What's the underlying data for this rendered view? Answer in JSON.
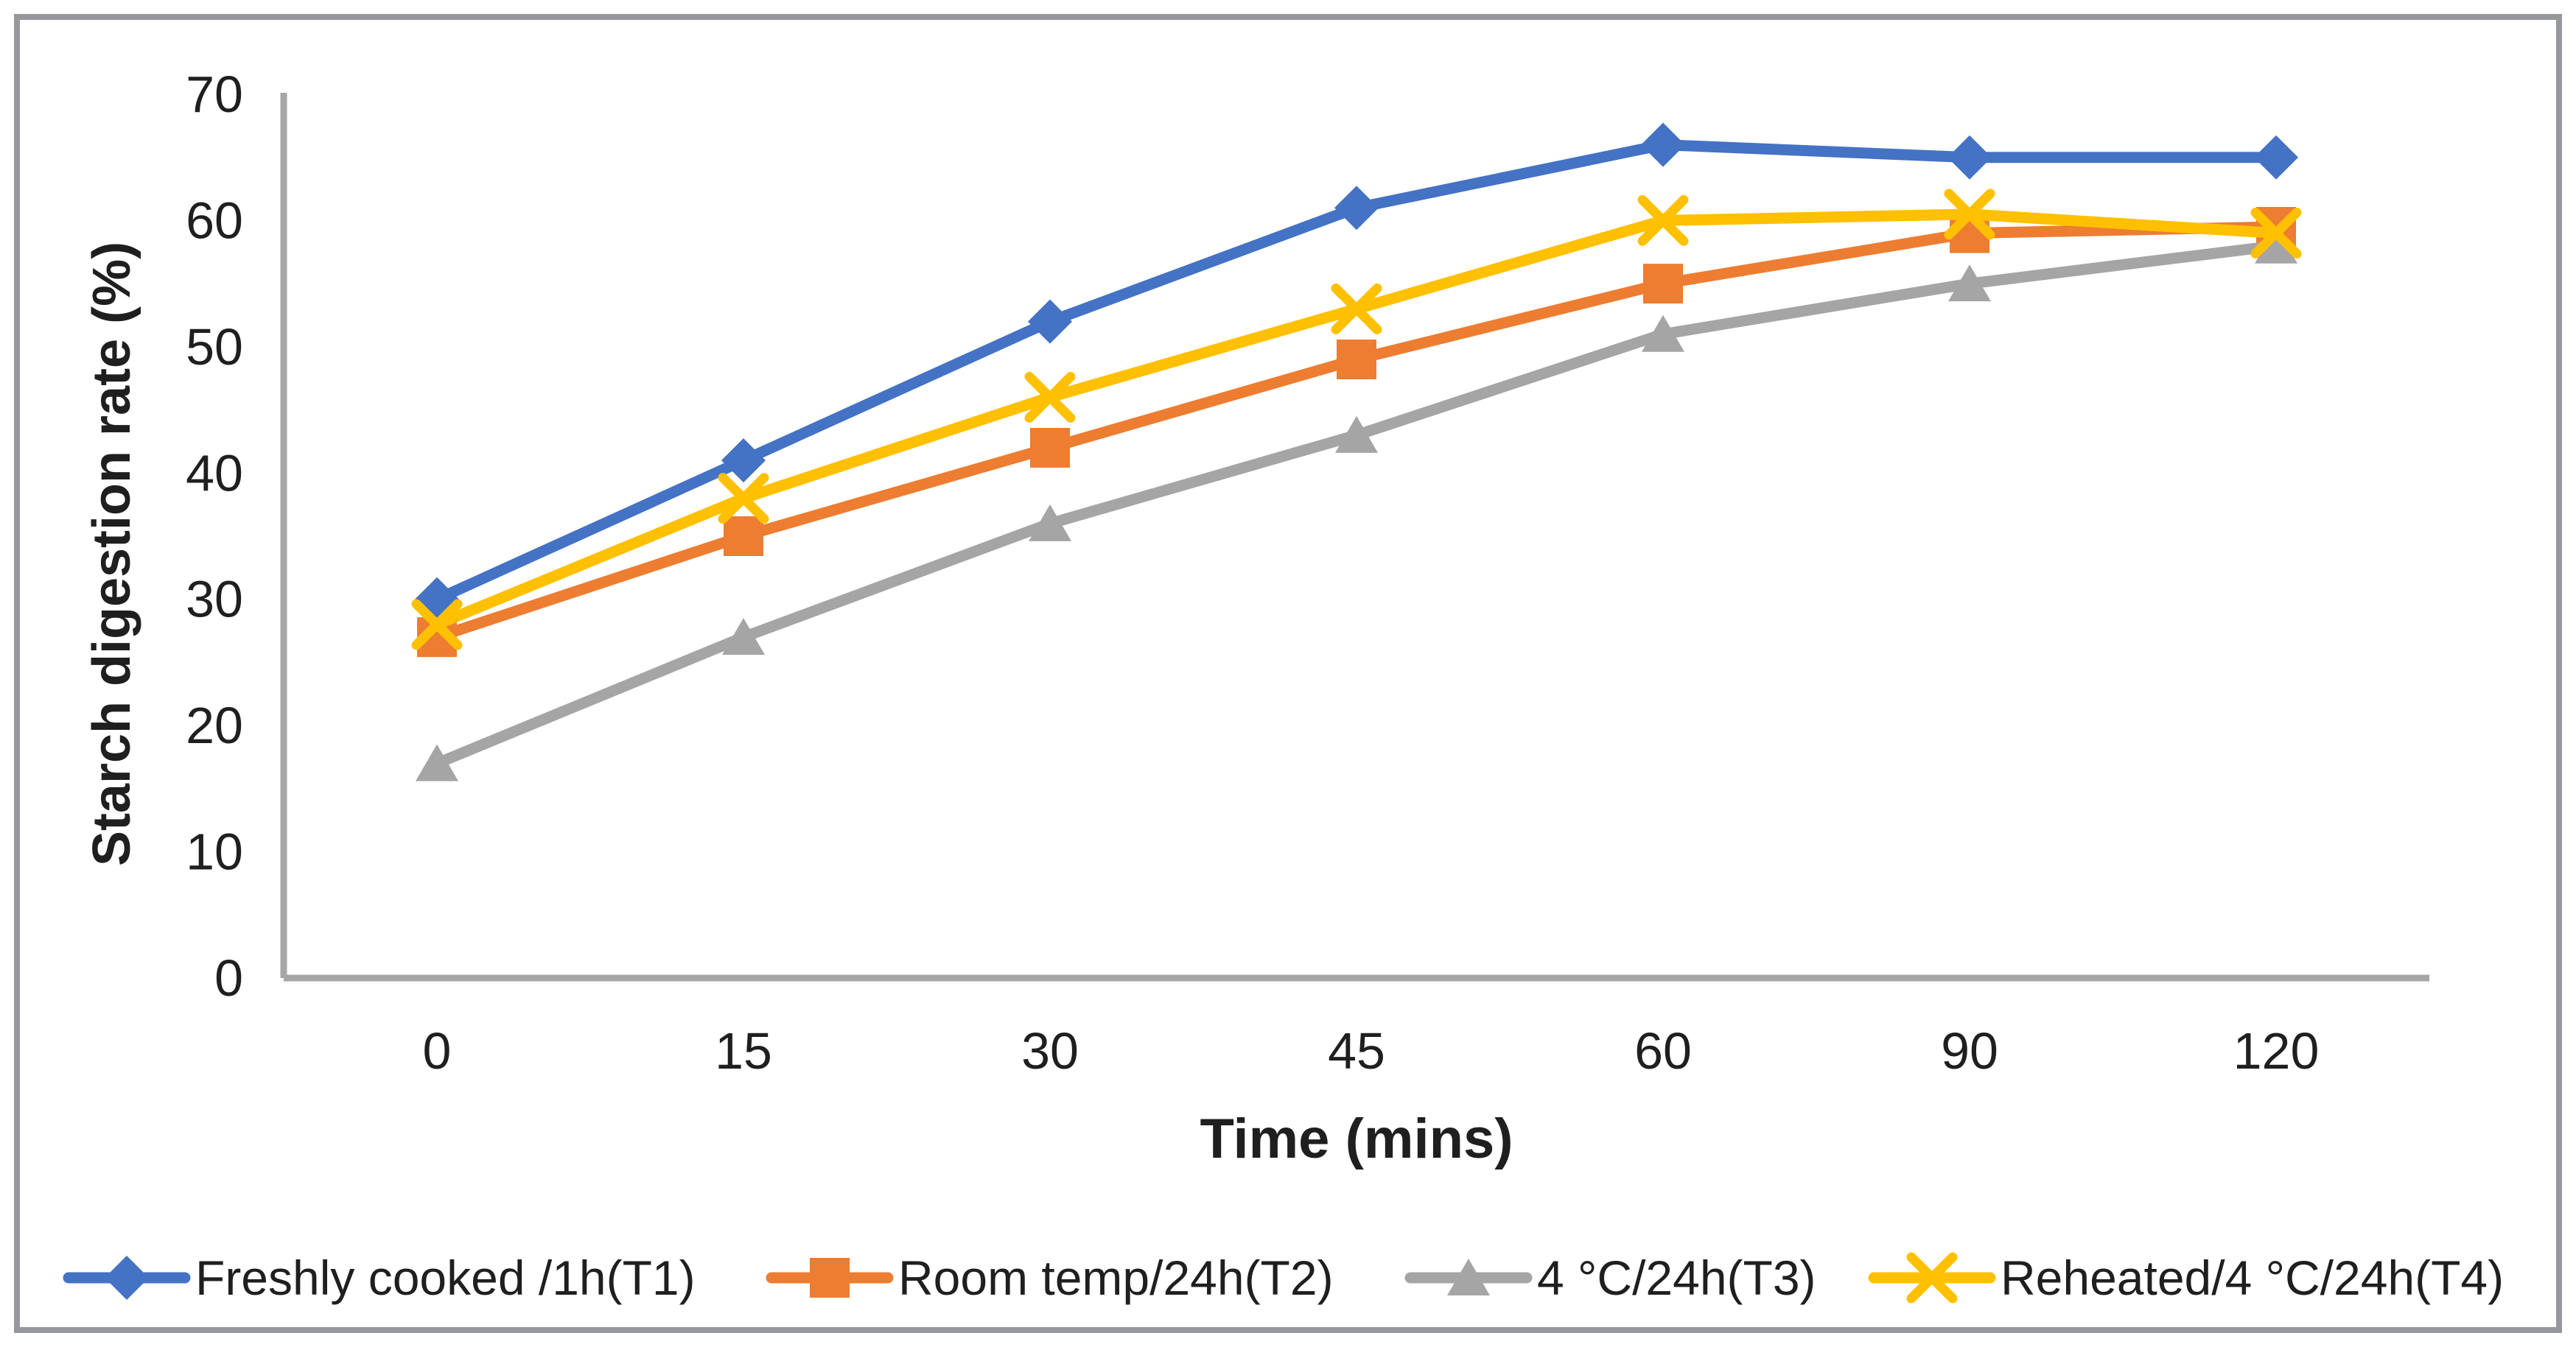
{
  "chart_data": {
    "type": "line",
    "title": "",
    "xlabel": "Time (mins)",
    "ylabel": "Starch digestion rate (%)",
    "categories": [
      0,
      15,
      30,
      45,
      60,
      90,
      120
    ],
    "x_tick_labels": [
      "0",
      "15",
      "30",
      "45",
      "60",
      "90",
      "120"
    ],
    "y_ticks": [
      "0",
      "10",
      "20",
      "30",
      "40",
      "50",
      "60",
      "70"
    ],
    "ylim": [
      0,
      70
    ],
    "grid": false,
    "legend_position": "bottom",
    "series": [
      {
        "name": "Freshly cooked /1h(T1)",
        "marker": "diamond",
        "color": "#4472C4",
        "values": [
          30,
          41,
          52,
          61,
          66,
          65,
          65
        ]
      },
      {
        "name": "Room temp/24h(T2)",
        "marker": "square",
        "color": "#ED7D31",
        "values": [
          27,
          35,
          42,
          49,
          55,
          59,
          59.5
        ]
      },
      {
        "name": "4 °C/24h(T3)",
        "marker": "triangle",
        "color": "#A5A5A5",
        "values": [
          17,
          27,
          36,
          43,
          51,
          55,
          58
        ]
      },
      {
        "name": "Reheated/4 °C/24h(T4)",
        "marker": "x",
        "color": "#FFC000",
        "values": [
          28,
          38,
          46,
          53,
          60,
          60.5,
          59
        ]
      }
    ],
    "colors": {
      "axis_line": "#A6A6A6",
      "figure_border": "#97989C",
      "text": "#1F1F1F",
      "background": "#FFFFFF"
    }
  }
}
